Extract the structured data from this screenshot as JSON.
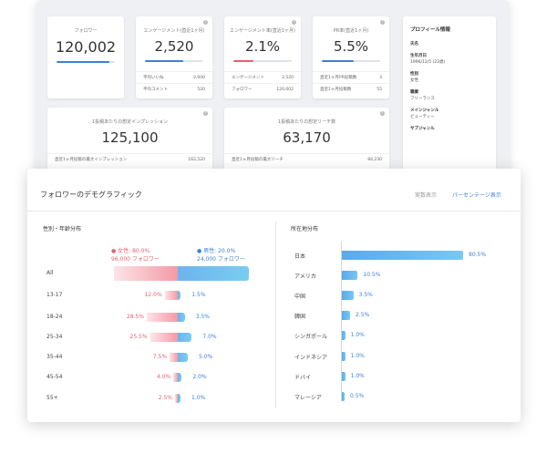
{
  "colors": {
    "female": "#f29aa5",
    "male": "#5aa9ee",
    "accent": "#3b82d6"
  },
  "cards": {
    "followers": {
      "title": "フォロワー",
      "value": "120,002",
      "progress": 0.9
    },
    "engagement": {
      "title": "エンゲージメント(直近1ヶ月)",
      "value": "2,520",
      "progress": 0.65,
      "rows": [
        {
          "label": "平均いいね",
          "value": "2,000"
        },
        {
          "label": "平均コメント",
          "value": "520"
        }
      ]
    },
    "engagement_rate": {
      "title": "エンゲージメント率(直近1ヶ月)",
      "value": "2.1%",
      "progress": 0.35,
      "rows": [
        {
          "label": "エンゲージメント",
          "value": "2,520"
        },
        {
          "label": "フォロワー",
          "value": "120,002"
        }
      ]
    },
    "pr_rate": {
      "title": "PR率(直近1ヶ月)",
      "value": "5.5%",
      "progress": 0.55,
      "rows": [
        {
          "label": "直近1ヶ月PR投稿数",
          "value": "3"
        },
        {
          "label": "直近1ヶ月投稿数",
          "value": "55"
        }
      ]
    },
    "impressions": {
      "title": "1投稿あたりの想定インプレッション",
      "value": "125,100",
      "row": {
        "label": "直近1ヶ月投稿の最大インプレッション",
        "value": "162,520"
      }
    },
    "reach": {
      "title": "1投稿あたりの想定リーチ数",
      "value": "63,170",
      "row": {
        "label": "直近1ヶ月投稿の最大リーチ",
        "value": "84,230"
      }
    }
  },
  "profile": {
    "title": "プロフィール情報",
    "fields": [
      {
        "label": "氏名",
        "value": ""
      },
      {
        "label": "生年月日",
        "value": "1996/12/5 (22歳)"
      },
      {
        "label": "性別",
        "value": "女性"
      },
      {
        "label": "職業",
        "value": "フリーランス"
      },
      {
        "label": "メインジャンル",
        "value": "ビューティー"
      },
      {
        "label": "サブジャンル",
        "value": ""
      }
    ]
  },
  "demographics": {
    "title": "フォロワーのデモグラフィック",
    "toggle_actual": "実数表示",
    "toggle_percent": "パーセンテージ表示",
    "gender_age": {
      "title": "性別・年齢分布",
      "female_header": "女性: 80.0%",
      "female_count": "96,000 フォロワー",
      "male_header": "男性: 20.0%",
      "male_count": "24,000 フォロワー",
      "female_icon": "female-icon",
      "male_icon": "male-icon",
      "rows": [
        {
          "label": "All",
          "female": 80.0,
          "male": 20.0,
          "female_label": "",
          "male_label": ""
        },
        {
          "label": "13-17",
          "female": 12.0,
          "male": 1.5,
          "female_label": "12.0%",
          "male_label": "1.5%"
        },
        {
          "label": "18-24",
          "female": 28.5,
          "male": 3.5,
          "female_label": "28.5%",
          "male_label": "3.5%"
        },
        {
          "label": "25-34",
          "female": 25.5,
          "male": 7.0,
          "female_label": "25.5%",
          "male_label": "7.0%"
        },
        {
          "label": "35-44",
          "female": 7.5,
          "male": 5.0,
          "female_label": "7.5%",
          "male_label": "5.0%"
        },
        {
          "label": "45-54",
          "female": 4.0,
          "male": 2.0,
          "female_label": "4.0%",
          "male_label": "2.0%"
        },
        {
          "label": "55+",
          "female": 2.5,
          "male": 1.0,
          "female_label": "2.5%",
          "male_label": "1.0%"
        }
      ]
    },
    "location": {
      "title": "所在地分布",
      "rows": [
        {
          "label": "日本",
          "value": 80.5,
          "value_label": "80.5%"
        },
        {
          "label": "アメリカ",
          "value": 10.5,
          "value_label": "10.5%"
        },
        {
          "label": "中国",
          "value": 3.5,
          "value_label": "3.5%"
        },
        {
          "label": "韓国",
          "value": 2.5,
          "value_label": "2.5%"
        },
        {
          "label": "シンガポール",
          "value": 1.0,
          "value_label": "1.0%"
        },
        {
          "label": "インドネシア",
          "value": 1.0,
          "value_label": "1.0%"
        },
        {
          "label": "ドバイ",
          "value": 1.0,
          "value_label": "1.0%"
        },
        {
          "label": "マレーシア",
          "value": 0.5,
          "value_label": "0.5%"
        }
      ]
    }
  }
}
